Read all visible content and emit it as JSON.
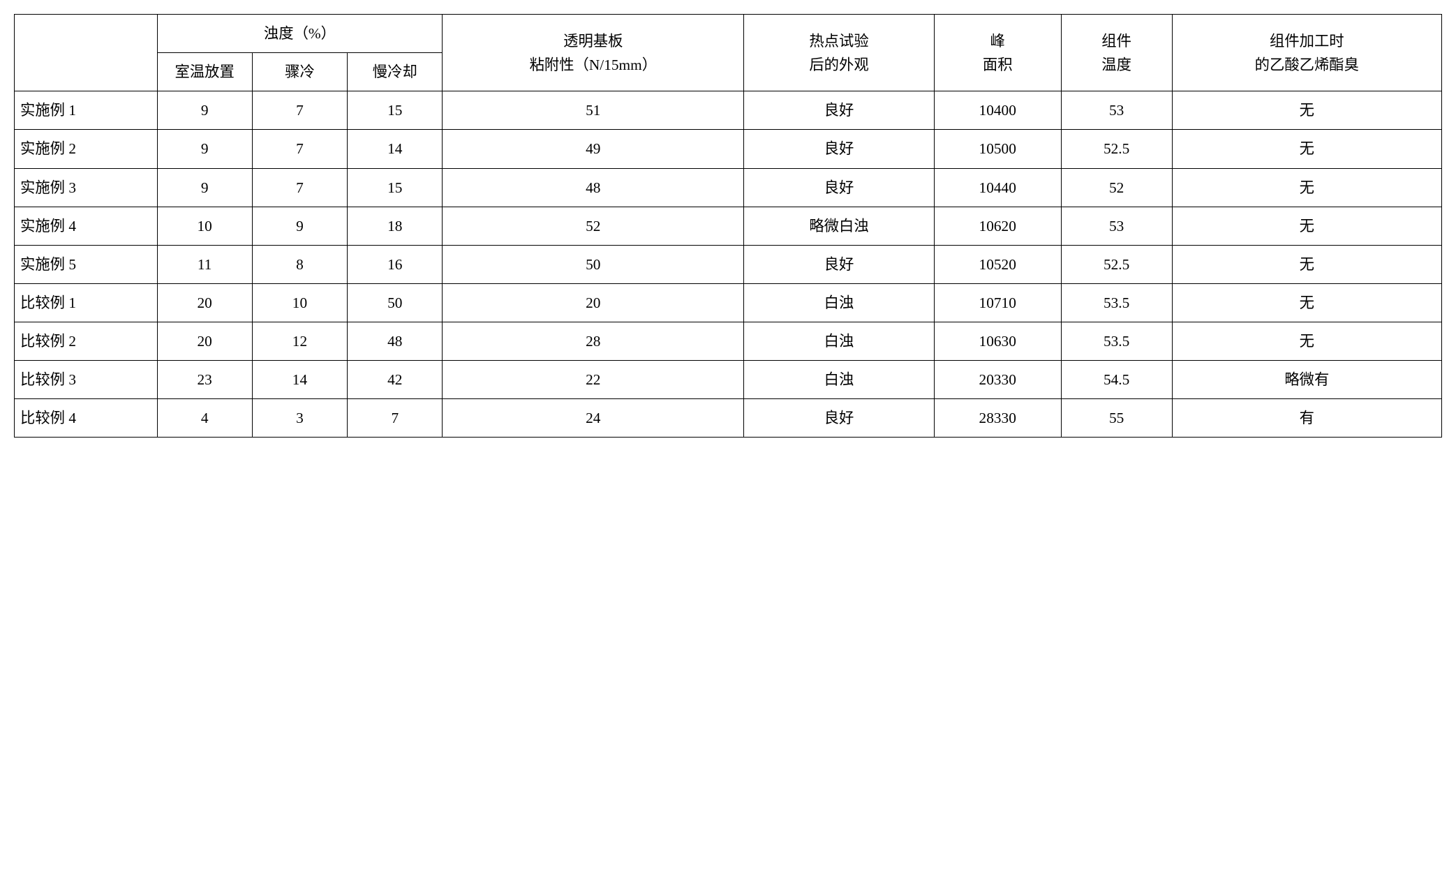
{
  "table": {
    "font_size_pt": 16,
    "border_color": "#000000",
    "background_color": "#ffffff",
    "text_color": "#000000",
    "column_widths_pct": [
      9,
      6,
      6,
      6,
      19,
      12,
      8,
      7,
      17
    ],
    "header": {
      "blank": "",
      "turbidity_group": "浊度（%）",
      "turbidity_sub": [
        "室温放置",
        "骤冷",
        "慢冷却"
      ],
      "adhesion_top": "透明基板",
      "adhesion_bottom": "粘附性（N/15mm）",
      "hotspot_top": "热点试验",
      "hotspot_bottom": "后的外观",
      "peak_top": "峰",
      "peak_bottom": "面积",
      "temp_top": "组件",
      "temp_bottom": "温度",
      "odor_top": "组件加工时",
      "odor_bottom": "的乙酸乙烯酯臭"
    },
    "rows": [
      {
        "label": "实施例 1",
        "t1": "9",
        "t2": "7",
        "t3": "15",
        "adh": "51",
        "app": "良好",
        "peak": "10400",
        "temp": "53",
        "odor": "无"
      },
      {
        "label": "实施例 2",
        "t1": "9",
        "t2": "7",
        "t3": "14",
        "adh": "49",
        "app": "良好",
        "peak": "10500",
        "temp": "52.5",
        "odor": "无"
      },
      {
        "label": "实施例 3",
        "t1": "9",
        "t2": "7",
        "t3": "15",
        "adh": "48",
        "app": "良好",
        "peak": "10440",
        "temp": "52",
        "odor": "无"
      },
      {
        "label": "实施例 4",
        "t1": "10",
        "t2": "9",
        "t3": "18",
        "adh": "52",
        "app": "略微白浊",
        "peak": "10620",
        "temp": "53",
        "odor": "无"
      },
      {
        "label": "实施例 5",
        "t1": "11",
        "t2": "8",
        "t3": "16",
        "adh": "50",
        "app": "良好",
        "peak": "10520",
        "temp": "52.5",
        "odor": "无"
      },
      {
        "label": "比较例 1",
        "t1": "20",
        "t2": "10",
        "t3": "50",
        "adh": "20",
        "app": "白浊",
        "peak": "10710",
        "temp": "53.5",
        "odor": "无"
      },
      {
        "label": "比较例 2",
        "t1": "20",
        "t2": "12",
        "t3": "48",
        "adh": "28",
        "app": "白浊",
        "peak": "10630",
        "temp": "53.5",
        "odor": "无"
      },
      {
        "label": "比较例 3",
        "t1": "23",
        "t2": "14",
        "t3": "42",
        "adh": "22",
        "app": "白浊",
        "peak": "20330",
        "temp": "54.5",
        "odor": "略微有"
      },
      {
        "label": "比较例 4",
        "t1": "4",
        "t2": "3",
        "t3": "7",
        "adh": "24",
        "app": "良好",
        "peak": "28330",
        "temp": "55",
        "odor": "有"
      }
    ]
  }
}
